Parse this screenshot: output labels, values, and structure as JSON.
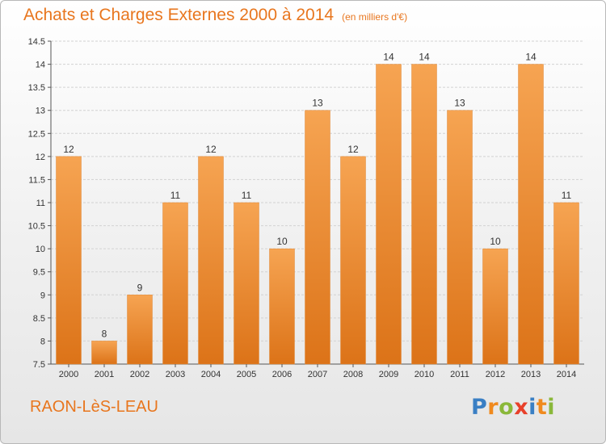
{
  "title": "Achats et Charges Externes 2000 à 2014",
  "unit": "(en milliers d'€)",
  "town": "RAON-LèS-LEAU",
  "logo": {
    "letters": [
      "P",
      "r",
      "o",
      "x",
      "i",
      "t",
      "i"
    ],
    "colors": [
      "#3a7fc4",
      "#f08a1e",
      "#8ab83a",
      "#e8402a",
      "#3a7fc4",
      "#f08a1e",
      "#8ab83a"
    ]
  },
  "colors": {
    "accent": "#e8761e",
    "bar_top": "#f6a452",
    "bar_bottom": "#dc7318"
  },
  "chart_data": {
    "type": "bar",
    "title": "Achats et Charges Externes 2000 à 2014",
    "subtitle": "(en milliers d'€)",
    "xlabel": "",
    "ylabel": "",
    "categories": [
      "2000",
      "2001",
      "2002",
      "2003",
      "2004",
      "2005",
      "2006",
      "2007",
      "2008",
      "2009",
      "2010",
      "2011",
      "2012",
      "2013",
      "2014"
    ],
    "values": [
      12,
      8,
      9,
      11,
      12,
      11,
      10,
      13,
      12,
      14,
      14,
      13,
      10,
      14,
      11
    ],
    "data_labels": [
      "12",
      "8",
      "9",
      "11",
      "12",
      "11",
      "10",
      "13",
      "12",
      "14",
      "14",
      "13",
      "10",
      "14",
      "11"
    ],
    "ylim": [
      7.5,
      14.5
    ],
    "yticks": [
      7.5,
      8,
      8.5,
      9,
      9.5,
      10,
      10.5,
      11,
      11.5,
      12,
      12.5,
      13,
      13.5,
      14,
      14.5
    ],
    "ytick_labels": [
      "7.5",
      "8",
      "8.5",
      "9",
      "9.5",
      "10",
      "10.5",
      "11",
      "11.5",
      "12",
      "12.5",
      "13",
      "13.5",
      "14",
      "14.5"
    ],
    "grid": true
  }
}
